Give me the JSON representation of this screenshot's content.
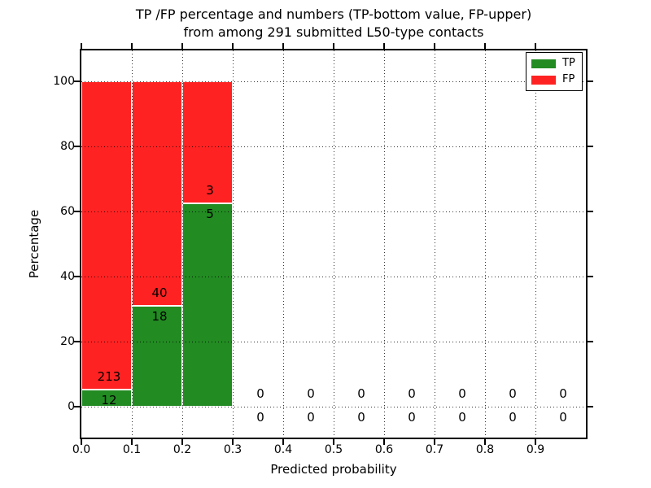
{
  "title": {
    "line1": "TP /FP percentage and numbers (TP-bottom value, FP-upper)",
    "line2": "from among 291 submitted L50-type contacts"
  },
  "axes": {
    "xlabel": "Predicted probability",
    "ylabel": "Percentage",
    "x_tick_labels": [
      "0.0",
      "0.1",
      "0.2",
      "0.3",
      "0.4",
      "0.5",
      "0.6",
      "0.7",
      "0.8",
      "0.9"
    ],
    "y_tick_labels": [
      "0",
      "20",
      "40",
      "60",
      "80",
      "100"
    ],
    "y_tick_values": [
      0,
      20,
      40,
      60,
      80,
      100
    ]
  },
  "legend": {
    "entries": [
      {
        "label": "TP",
        "color": "#228b22"
      },
      {
        "label": "FP",
        "color": "#ff2222"
      }
    ]
  },
  "chart_data": {
    "type": "bar",
    "subtype": "stacked-percentage",
    "title": "TP /FP percentage and numbers (TP-bottom value, FP-upper) from among 291 submitted L50-type contacts",
    "xlabel": "Predicted probability",
    "ylabel": "Percentage",
    "total_contacts": 291,
    "xlim": [
      0.0,
      1.0
    ],
    "ylim": [
      -10,
      110
    ],
    "grid": true,
    "grid_style": "dotted",
    "legend_position": "upper right",
    "colors": {
      "tp": "#228b22",
      "fp": "#ff2222"
    },
    "bins": [
      {
        "range": [
          0.0,
          0.1
        ],
        "tp_count": 12,
        "fp_count": 213,
        "tp_pct": 5.33,
        "fp_pct": 94.67
      },
      {
        "range": [
          0.1,
          0.2
        ],
        "tp_count": 18,
        "fp_count": 40,
        "tp_pct": 31.03,
        "fp_pct": 68.97
      },
      {
        "range": [
          0.2,
          0.3
        ],
        "tp_count": 5,
        "fp_count": 3,
        "tp_pct": 62.5,
        "fp_pct": 37.5
      },
      {
        "range": [
          0.3,
          0.4
        ],
        "tp_count": 0,
        "fp_count": 0,
        "tp_pct": 0,
        "fp_pct": 0
      },
      {
        "range": [
          0.4,
          0.5
        ],
        "tp_count": 0,
        "fp_count": 0,
        "tp_pct": 0,
        "fp_pct": 0
      },
      {
        "range": [
          0.5,
          0.6
        ],
        "tp_count": 0,
        "fp_count": 0,
        "tp_pct": 0,
        "fp_pct": 0
      },
      {
        "range": [
          0.6,
          0.7
        ],
        "tp_count": 0,
        "fp_count": 0,
        "tp_pct": 0,
        "fp_pct": 0
      },
      {
        "range": [
          0.7,
          0.8
        ],
        "tp_count": 0,
        "fp_count": 0,
        "tp_pct": 0,
        "fp_pct": 0
      },
      {
        "range": [
          0.8,
          0.9
        ],
        "tp_count": 0,
        "fp_count": 0,
        "tp_pct": 0,
        "fp_pct": 0
      },
      {
        "range": [
          0.9,
          1.0
        ],
        "tp_count": 0,
        "fp_count": 0,
        "tp_pct": 0,
        "fp_pct": 0
      }
    ]
  }
}
